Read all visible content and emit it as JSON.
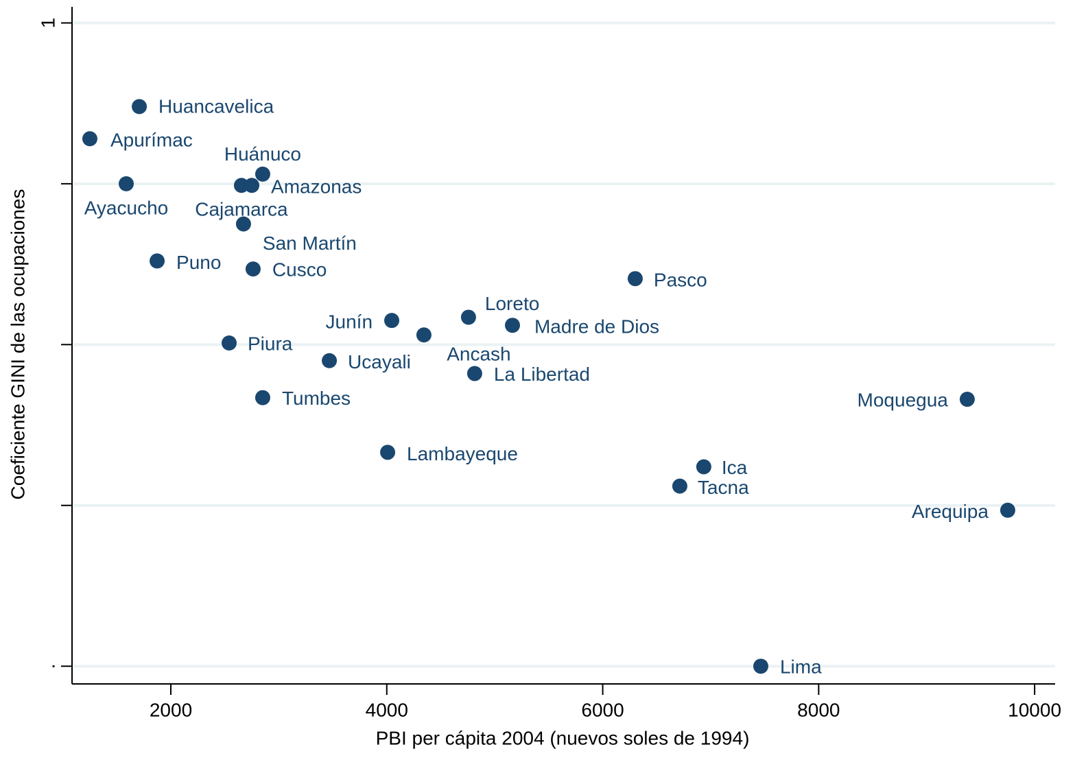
{
  "chart_data": {
    "type": "scatter",
    "x_label": "PBI per cápita 2004 (nuevos soles de 1994)",
    "y_label": "Coeficiente GINI de las ocupaciones",
    "color": "#1a476f",
    "grid": true,
    "xlim": [
      1085,
      10190
    ],
    "xticks": [
      2000,
      4000,
      6000,
      8000,
      10000
    ],
    "ylim": [
      0.589,
      1.01
    ],
    "yticks": [
      {
        "value": 0.6,
        "label": "."
      },
      1
    ],
    "yminor_ticks": [
      0.7,
      0.8,
      0.9
    ],
    "labels": [
      "Huancavelica",
      "Apurímac",
      "Huánuco",
      "Ayacucho",
      "Cajamarca",
      "Amazonas",
      "San Martín",
      "Puno",
      "Cusco",
      "Pasco",
      "Junín",
      "Loreto",
      "Madre de Dios",
      "Ancash",
      "Piura",
      "Ucayali",
      "La Libertad",
      "Tumbes",
      "Moquegua",
      "Lambayeque",
      "Ica",
      "Tacna",
      "Arequipa",
      "Lima"
    ],
    "x": [
      1708,
      1250,
      2851,
      1587,
      2654,
      2750,
      2673,
      1873,
      2762,
      6301,
      4046,
      4757,
      5164,
      4344,
      2540,
      3468,
      4814,
      2851,
      9376,
      4008,
      6936,
      6714,
      9751,
      7464
    ],
    "y": [
      0.948,
      0.928,
      0.906,
      0.9,
      0.899,
      0.899,
      0.875,
      0.852,
      0.847,
      0.841,
      0.815,
      0.817,
      0.812,
      0.806,
      0.801,
      0.79,
      0.782,
      0.767,
      0.766,
      0.733,
      0.724,
      0.712,
      0.697,
      0.6
    ]
  }
}
